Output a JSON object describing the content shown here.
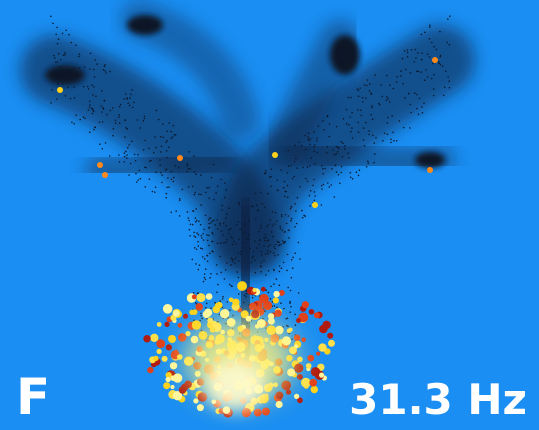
{
  "panel_label": "F",
  "frequency_label": "31.3 Hz"
}
